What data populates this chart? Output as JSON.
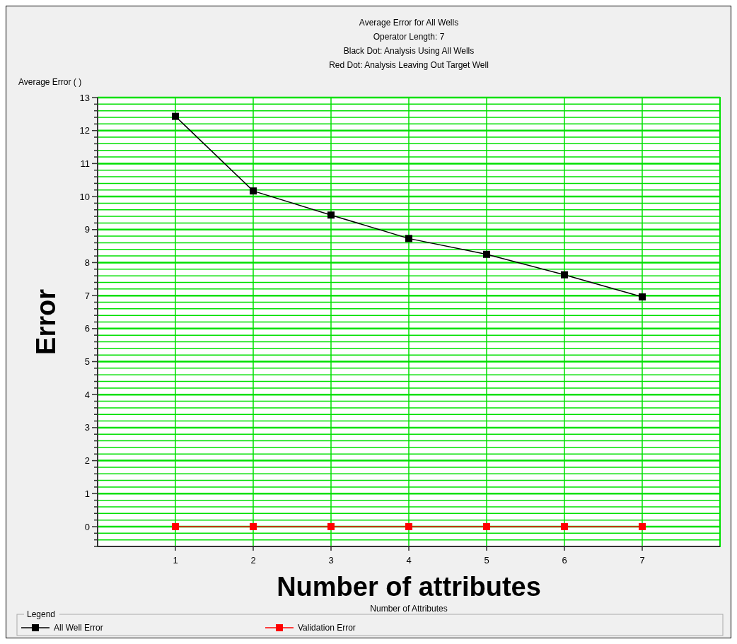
{
  "chart_data": {
    "type": "line",
    "title": "Average Error for All Wells",
    "subtitle": "Operator Length: 7\nBlack Dot: Analysis Using All Wells\nRed Dot: Analysis Leaving Out Target Well",
    "ylabel": "Average Error ( )",
    "xlabel": "Number of Attributes",
    "legend_title": "Legend",
    "annotations": [
      "Error",
      "Number of attributes"
    ],
    "x": [
      1,
      2,
      3,
      4,
      5,
      6,
      7
    ],
    "series": [
      {
        "name": "All Well Error",
        "color": "#000000",
        "values": [
          12.43,
          10.17,
          9.44,
          8.73,
          8.25,
          7.63,
          6.96
        ]
      },
      {
        "name": "Validation Error",
        "color": "#ff0000",
        "values": [
          0,
          0,
          0,
          0,
          0,
          0,
          0
        ]
      }
    ],
    "xlim": [
      0,
      8
    ],
    "xticks": [
      1,
      2,
      3,
      4,
      5,
      6,
      7
    ],
    "ylim": [
      -0.6,
      13
    ],
    "yticks": [
      {
        "value": -0.6,
        "label": null
      },
      {
        "value": -0.4,
        "label": null
      },
      {
        "value": -0.2,
        "label": null
      },
      0,
      {
        "value": 0.2,
        "label": null
      },
      {
        "value": 0.4,
        "label": null
      },
      {
        "value": 0.6,
        "label": null
      },
      {
        "value": 0.8,
        "label": null
      },
      1,
      {
        "value": 1.2,
        "label": null
      },
      {
        "value": 1.4,
        "label": null
      },
      {
        "value": 1.6,
        "label": null
      },
      {
        "value": 1.8,
        "label": null
      },
      2,
      {
        "value": 2.2,
        "label": null
      },
      {
        "value": 2.4,
        "label": null
      },
      {
        "value": 2.6,
        "label": null
      },
      {
        "value": 2.8,
        "label": null
      },
      3,
      {
        "value": 3.2,
        "label": null
      },
      {
        "value": 3.4,
        "label": null
      },
      {
        "value": 3.6,
        "label": null
      },
      {
        "value": 3.8,
        "label": null
      },
      4,
      {
        "value": 4.2,
        "label": null
      },
      {
        "value": 4.4,
        "label": null
      },
      {
        "value": 4.6,
        "label": null
      },
      {
        "value": 4.8,
        "label": null
      },
      5,
      {
        "value": 5.2,
        "label": null
      },
      {
        "value": 5.4,
        "label": null
      },
      {
        "value": 5.6,
        "label": null
      },
      {
        "value": 5.8,
        "label": null
      },
      6,
      {
        "value": 6.2,
        "label": null
      },
      {
        "value": 6.4,
        "label": null
      },
      {
        "value": 6.6,
        "label": null
      },
      {
        "value": 6.8,
        "label": null
      },
      7,
      {
        "value": 7.2,
        "label": null
      },
      {
        "value": 7.4,
        "label": null
      },
      {
        "value": 7.6,
        "label": null
      },
      {
        "value": 7.8,
        "label": null
      },
      8,
      {
        "value": 8.2,
        "label": null
      },
      {
        "value": 8.4,
        "label": null
      },
      {
        "value": 8.6,
        "label": null
      },
      {
        "value": 8.8,
        "label": null
      },
      9,
      {
        "value": 9.2,
        "label": null
      },
      {
        "value": 9.4,
        "label": null
      },
      {
        "value": 9.6,
        "label": null
      },
      {
        "value": 9.8,
        "label": null
      },
      10,
      {
        "value": 10.2,
        "label": null
      },
      {
        "value": 10.4,
        "label": null
      },
      {
        "value": 10.6,
        "label": null
      },
      {
        "value": 10.8,
        "label": null
      },
      11,
      {
        "value": 11.2,
        "label": null
      },
      {
        "value": 11.4,
        "label": null
      },
      {
        "value": 11.6,
        "label": null
      },
      {
        "value": 11.8,
        "label": null
      },
      12,
      {
        "value": 12.2,
        "label": null
      },
      {
        "value": 12.4,
        "label": null
      },
      {
        "value": 12.6,
        "label": null
      },
      {
        "value": 12.8,
        "label": null
      },
      13
    ],
    "grid": true,
    "legend": "bottom",
    "marker": "square",
    "line_style": "solid"
  }
}
